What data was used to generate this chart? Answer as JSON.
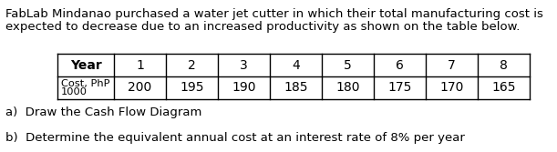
{
  "title_line1": "FabLab Mindanao purchased a water jet cutter in which their total manufacturing cost is",
  "title_line2": "expected to decrease due to an increased productivity as shown on the table below.",
  "col_headers": [
    "Year",
    "1",
    "2",
    "3",
    "4",
    "5",
    "6",
    "7",
    "8"
  ],
  "row_label_line1": "Cost, PhP",
  "row_label_line2": "1000",
  "row_values": [
    "200",
    "195",
    "190",
    "185",
    "180",
    "175",
    "170",
    "165"
  ],
  "item_a": "a)  Draw the Cash Flow Diagram",
  "item_b": "b)  Determine the equivalent annual cost at an interest rate of 8% per year",
  "text_color": "#000000",
  "bg_color": "#ffffff",
  "title_fontsize": 9.5,
  "header_fontsize": 10.0,
  "data_fontsize": 10.0,
  "label_fontsize": 8.2,
  "item_fontsize": 9.5
}
